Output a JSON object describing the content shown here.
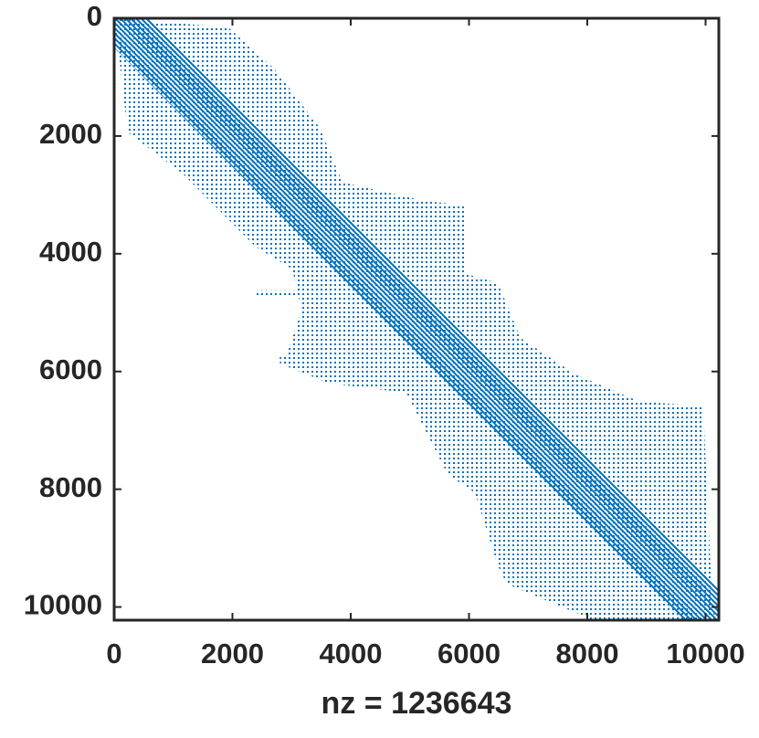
{
  "chart_data": {
    "type": "spy",
    "xlabel": "nz = 1236643",
    "xlim": [
      0,
      10224
    ],
    "ylim": [
      0,
      10224
    ],
    "xticks": [
      0,
      2000,
      4000,
      6000,
      8000,
      10000
    ],
    "yticks": [
      0,
      2000,
      4000,
      6000,
      8000,
      10000
    ],
    "y_reversed": true,
    "color": "#0072bd",
    "regions": [
      {
        "cols": [
          0,
          1930,
          2700,
          3475,
          3860,
          5250,
          5945,
          5945,
          6490,
          6870,
          7800,
          8880,
          9960,
          10040,
          10120,
          10224,
          8108,
          6640,
          6490,
          6100,
          5640,
          4940,
          3630,
          2860,
          3170,
          3010,
          2390,
          1160,
          230,
          80
        ],
        "rows": [
          0,
          155,
          850,
          1860,
          2790,
          3100,
          3180,
          4340,
          4500,
          5430,
          6050,
          6510,
          6590,
          8370,
          10080,
          10224,
          10224,
          9610,
          9300,
          8060,
          7750,
          6360,
          6200,
          5890,
          4960,
          4260,
          3880,
          2640,
          1940,
          620
        ]
      },
      {
        "cols": [
          2400,
          5500,
          5500,
          2400
        ],
        "rows": [
          4620,
          4620,
          4700,
          4700
        ]
      },
      {
        "cols": [
          2800,
          6000,
          6000,
          2800
        ],
        "rows": [
          5740,
          5740,
          5860,
          5860
        ]
      }
    ],
    "band": {
      "cols": [
        0,
        600,
        10224,
        10224,
        9600,
        0
      ],
      "rows": [
        0,
        0,
        9700,
        10224,
        10224,
        500
      ]
    }
  }
}
